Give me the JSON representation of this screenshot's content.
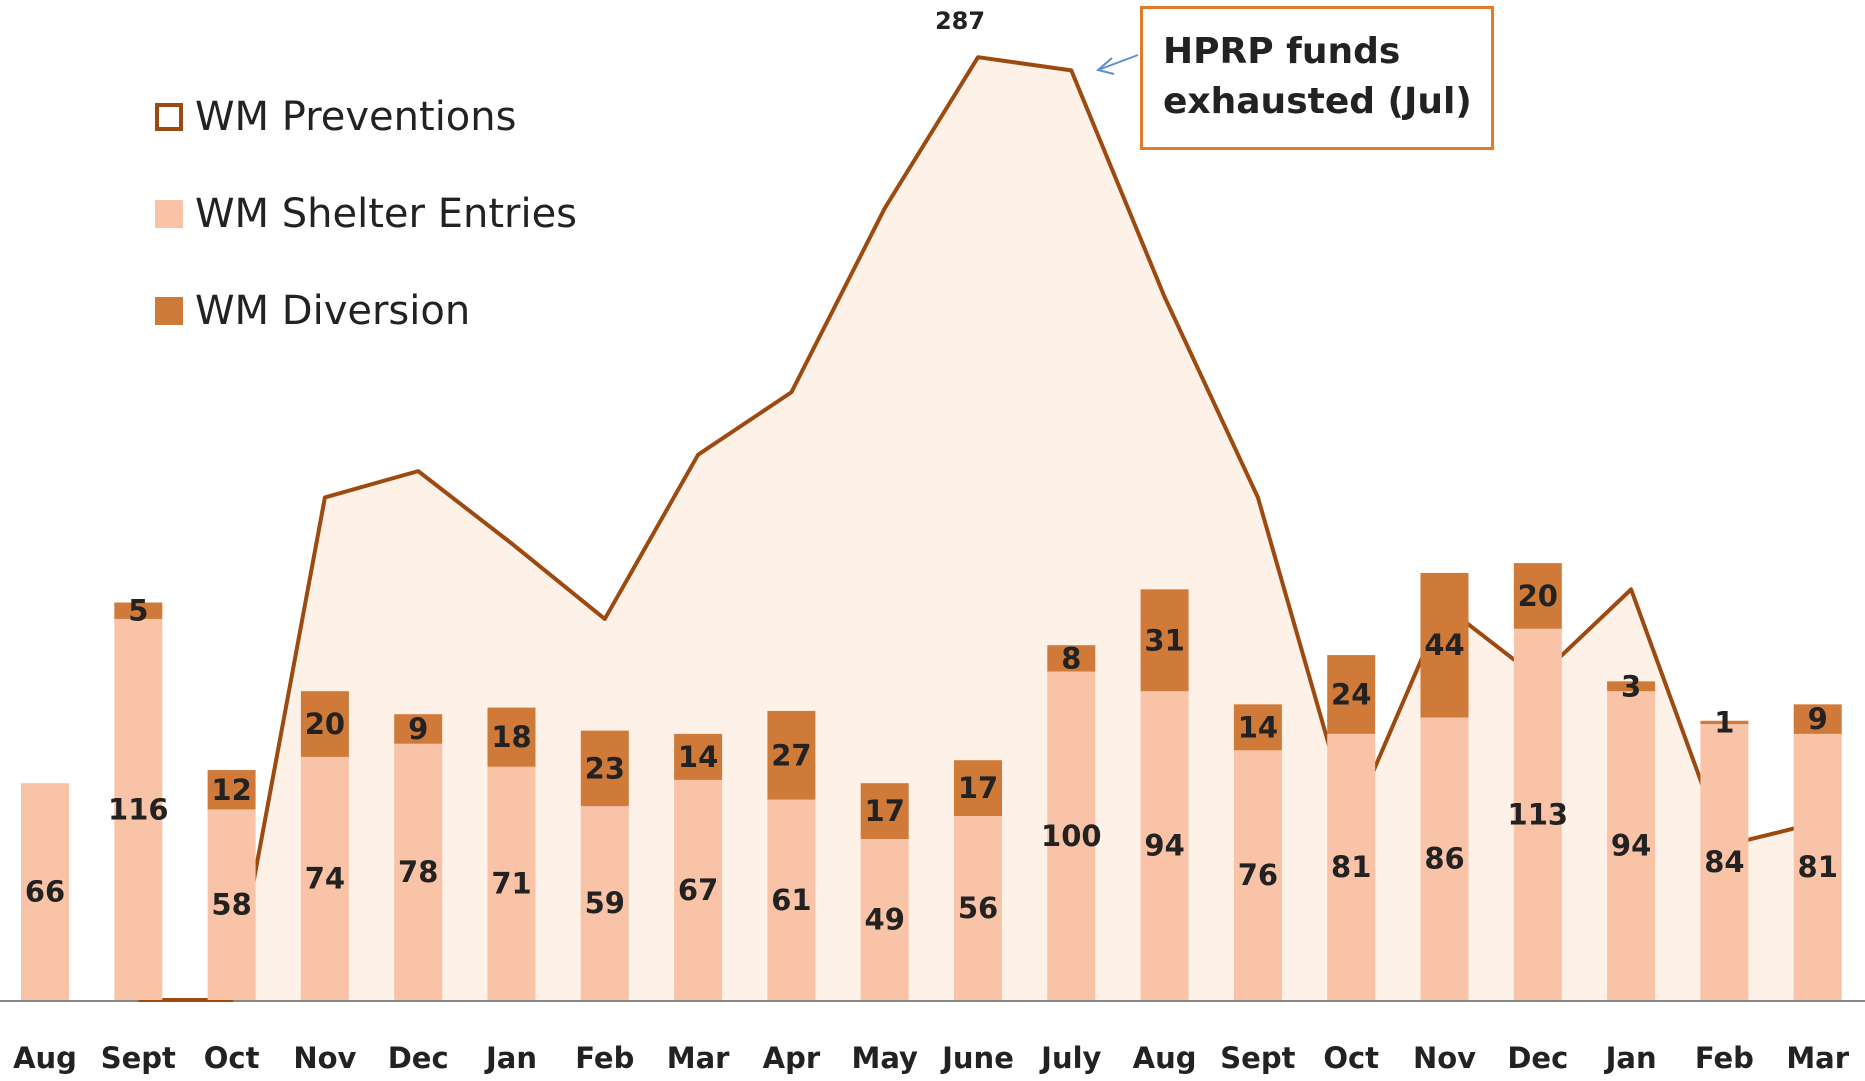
{
  "chart_data": {
    "type": "bar",
    "categories": [
      "Aug",
      "Sept",
      "Oct",
      "Nov",
      "Dec",
      "Jan",
      "Feb",
      "Mar",
      "Apr",
      "May",
      "June",
      "July",
      "Aug",
      "Sept",
      "Oct",
      "Nov",
      "Dec",
      "Jan",
      "Feb",
      "Mar"
    ],
    "series": [
      {
        "name": "WM Preventions",
        "type": "line",
        "color": "#9c4a10",
        "fill": "#fdf1e8",
        "values": [
          null,
          0,
          0,
          153,
          161,
          139,
          116,
          166,
          185,
          241,
          287,
          283,
          214,
          153,
          54,
          120,
          98,
          125,
          47,
          54
        ]
      },
      {
        "name": "WM Shelter Entries",
        "color": "#f9c3a7",
        "values": [
          66,
          116,
          58,
          74,
          78,
          71,
          59,
          67,
          61,
          49,
          56,
          100,
          94,
          76,
          81,
          86,
          113,
          94,
          84,
          81
        ]
      },
      {
        "name": "WM Diversion",
        "color": "#d07a3a",
        "values": [
          null,
          5,
          12,
          20,
          9,
          18,
          23,
          14,
          27,
          17,
          17,
          8,
          31,
          14,
          24,
          44,
          20,
          3,
          1,
          9
        ]
      }
    ],
    "annotation": "HPRP funds exhausted (Jul)",
    "ylim": [
      0,
      300
    ]
  }
}
